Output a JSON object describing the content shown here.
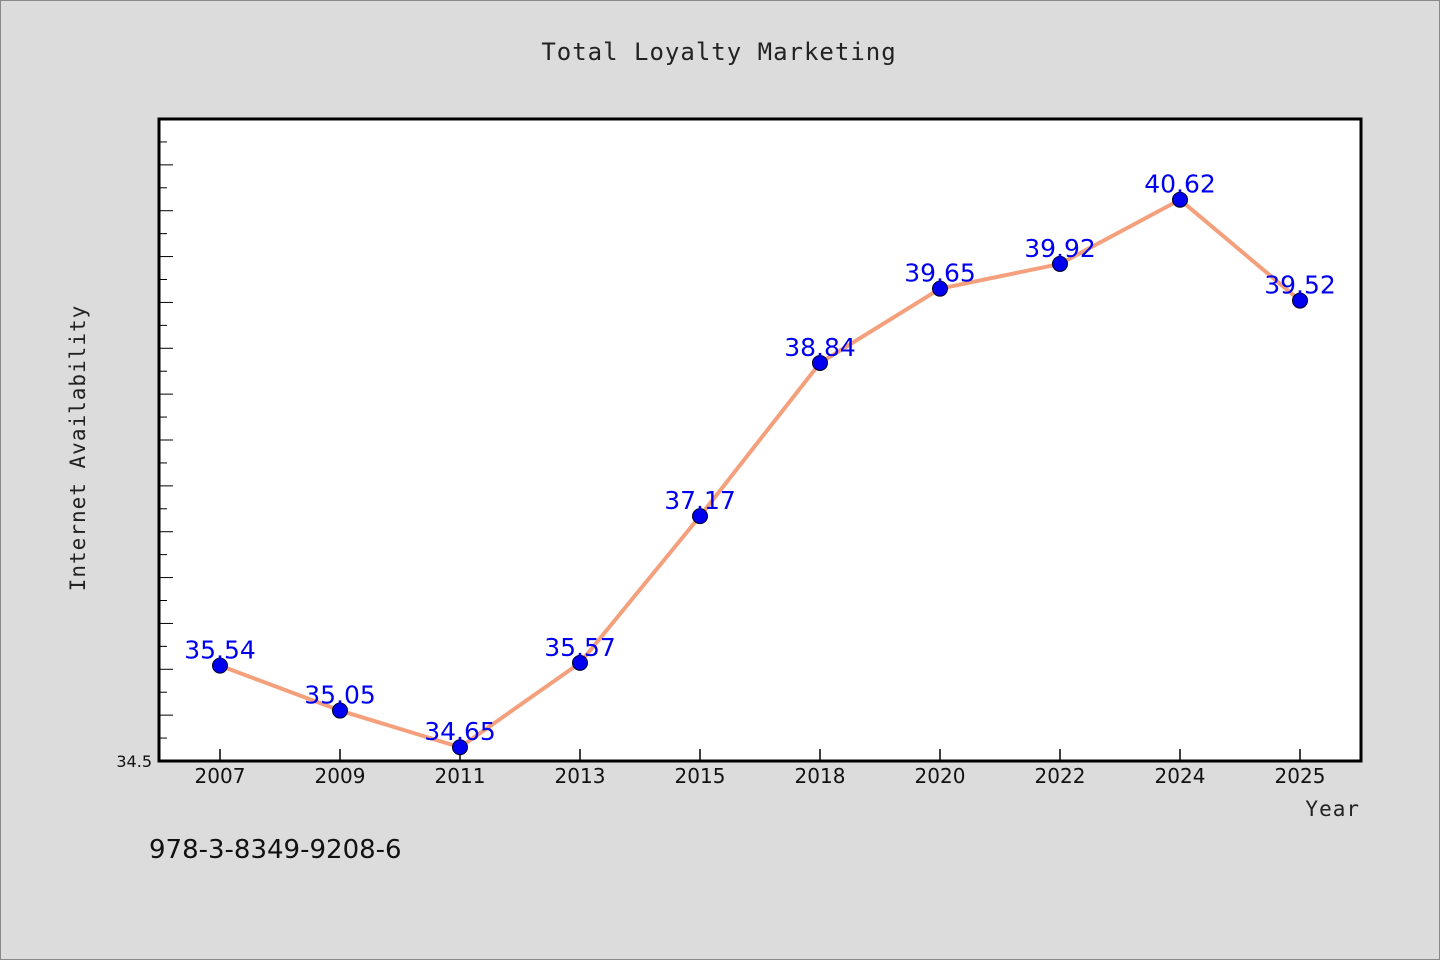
{
  "chart_data": {
    "type": "line",
    "title": "Total Loyalty Marketing",
    "xlabel": "Year",
    "ylabel": "Internet Availability",
    "categories": [
      "2007",
      "2009",
      "2011",
      "2013",
      "2015",
      "2018",
      "2020",
      "2022",
      "2024",
      "2025"
    ],
    "series": [
      {
        "values": [
          35.54,
          35.05,
          34.65,
          35.57,
          37.17,
          38.84,
          39.65,
          39.92,
          40.62,
          39.52
        ]
      }
    ],
    "data_labels": [
      "35.54",
      "35.05",
      "34.65",
      "35.57",
      "37.17",
      "38.84",
      "39.65",
      "39.92",
      "40.62",
      "39.52"
    ],
    "ylim": [
      34.5,
      41.5
    ],
    "y_tick_label_min": "34.5",
    "grid": false,
    "legend": "none",
    "colors": {
      "line": "#f4a07c",
      "marker": "#0000ee",
      "label": "#0000ee"
    }
  },
  "footer": {
    "code": "978-3-8349-9208-6"
  }
}
